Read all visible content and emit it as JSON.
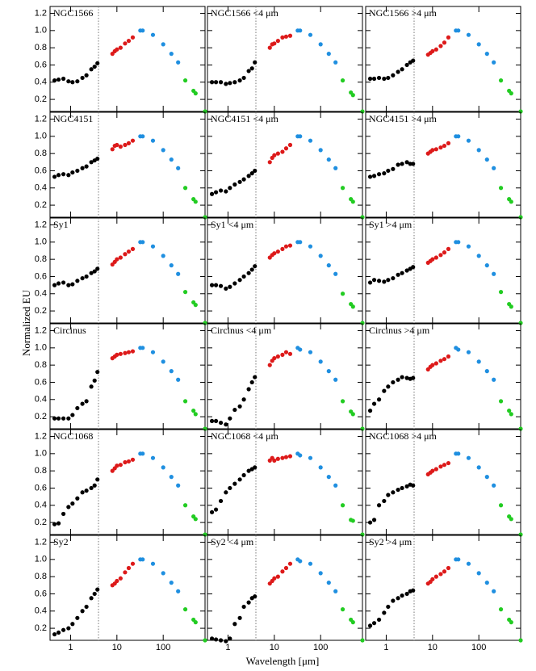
{
  "chart_data": {
    "type": "scatter",
    "xlabel": "Wavelength [μm]",
    "ylabel": "Normalized EU",
    "xscale": "log",
    "xlim": [
      0.36,
      800
    ],
    "ylim": [
      0.06,
      1.28
    ],
    "xticks": [
      1,
      10,
      100
    ],
    "yticks": [
      0.2,
      0.4,
      0.6,
      0.8,
      {
        "value": 1,
        "label": "1.0"
      },
      1.2
    ],
    "vline": 4,
    "groups": [
      {
        "color": "#000000",
        "x": [
          0.45,
          0.55,
          0.7,
          0.9,
          1.1,
          1.4,
          1.8,
          2.2,
          2.8,
          3.3,
          3.8
        ]
      },
      {
        "color": "#dd1a1a",
        "x": [
          8,
          9,
          10,
          12,
          15,
          18,
          22
        ]
      },
      {
        "color": "#1f8fe0",
        "x": [
          32,
          36,
          60,
          100,
          150,
          210
        ]
      },
      {
        "color": "#22cc22",
        "x": [
          300,
          450,
          500,
          800
        ]
      }
    ],
    "panels": [
      {
        "title": "NGC1566",
        "series": [
          {
            "values": [
              0.42,
              0.43,
              0.44,
              0.41,
              0.4,
              0.41,
              0.45,
              0.48,
              0.55,
              0.58,
              0.62
            ]
          },
          {
            "values": [
              0.73,
              0.76,
              0.78,
              0.8,
              0.85,
              0.88,
              0.92
            ]
          },
          {
            "values": [
              1.0,
              1.0,
              0.95,
              0.84,
              0.73,
              0.63
            ]
          },
          {
            "values": [
              0.42,
              0.3,
              0.27,
              0.06
            ]
          }
        ]
      },
      {
        "title": "NGC1566 <4 μm",
        "series": [
          {
            "values": [
              0.4,
              0.4,
              0.4,
              0.38,
              0.39,
              0.4,
              0.42,
              0.45,
              0.53,
              0.56,
              0.63
            ]
          },
          {
            "values": [
              0.8,
              0.84,
              0.85,
              0.88,
              0.92,
              0.93,
              0.94
            ]
          },
          {
            "values": [
              1.0,
              1.0,
              0.95,
              0.84,
              0.73,
              0.63
            ]
          },
          {
            "values": [
              0.42,
              0.28,
              0.25,
              0.06
            ]
          }
        ]
      },
      {
        "title": "NGC1566 >4 μm",
        "series": [
          {
            "values": [
              0.44,
              0.44,
              0.45,
              0.44,
              0.45,
              0.48,
              0.52,
              0.55,
              0.6,
              0.63,
              0.65
            ]
          },
          {
            "values": [
              0.72,
              0.74,
              0.76,
              0.78,
              0.82,
              0.86,
              0.92
            ]
          },
          {
            "values": [
              1.0,
              1.0,
              0.95,
              0.84,
              0.73,
              0.63
            ]
          },
          {
            "values": [
              0.42,
              0.3,
              0.27,
              0.06
            ]
          }
        ]
      },
      {
        "title": "NGC4151",
        "series": [
          {
            "values": [
              0.53,
              0.55,
              0.56,
              0.55,
              0.58,
              0.6,
              0.63,
              0.65,
              0.7,
              0.72,
              0.74
            ]
          },
          {
            "values": [
              0.85,
              0.89,
              0.9,
              0.88,
              0.9,
              0.92,
              0.95
            ]
          },
          {
            "values": [
              1.0,
              1.0,
              0.95,
              0.84,
              0.73,
              0.63
            ]
          },
          {
            "values": [
              0.4,
              0.27,
              0.24,
              0.06
            ]
          }
        ]
      },
      {
        "title": "NGC4151 <4 μm",
        "series": [
          {
            "values": [
              0.33,
              0.35,
              0.37,
              0.36,
              0.4,
              0.44,
              0.47,
              0.5,
              0.54,
              0.57,
              0.6
            ]
          },
          {
            "values": [
              0.7,
              0.75,
              0.78,
              0.8,
              0.82,
              0.86,
              0.9
            ]
          },
          {
            "values": [
              1.0,
              1.0,
              0.95,
              0.84,
              0.73,
              0.63
            ]
          },
          {
            "values": [
              0.4,
              0.27,
              0.24,
              0.06
            ]
          }
        ]
      },
      {
        "title": "NGC4151 >4 μm",
        "series": [
          {
            "values": [
              0.53,
              0.54,
              0.56,
              0.57,
              0.6,
              0.62,
              0.67,
              0.68,
              0.7,
              0.68,
              0.68
            ]
          },
          {
            "values": [
              0.8,
              0.82,
              0.84,
              0.85,
              0.87,
              0.89,
              0.92
            ]
          },
          {
            "values": [
              1.0,
              1.0,
              0.95,
              0.84,
              0.73,
              0.63
            ]
          },
          {
            "values": [
              0.4,
              0.27,
              0.24,
              0.06
            ]
          }
        ]
      },
      {
        "title": "Sy1",
        "series": [
          {
            "values": [
              0.5,
              0.52,
              0.53,
              0.5,
              0.51,
              0.55,
              0.58,
              0.6,
              0.64,
              0.66,
              0.69
            ]
          },
          {
            "values": [
              0.74,
              0.77,
              0.8,
              0.82,
              0.86,
              0.89,
              0.92
            ]
          },
          {
            "values": [
              1.0,
              1.0,
              0.95,
              0.84,
              0.73,
              0.63
            ]
          },
          {
            "values": [
              0.42,
              0.3,
              0.27,
              0.06
            ]
          }
        ]
      },
      {
        "title": "Sy1 <4 μm",
        "series": [
          {
            "values": [
              0.5,
              0.5,
              0.49,
              0.46,
              0.48,
              0.52,
              0.56,
              0.6,
              0.64,
              0.68,
              0.72
            ]
          },
          {
            "values": [
              0.82,
              0.85,
              0.87,
              0.89,
              0.92,
              0.95,
              0.96
            ]
          },
          {
            "values": [
              1.0,
              1.0,
              0.95,
              0.84,
              0.73,
              0.63
            ]
          },
          {
            "values": [
              0.4,
              0.28,
              0.25,
              0.06
            ]
          }
        ]
      },
      {
        "title": "Sy1 >4 μm",
        "series": [
          {
            "values": [
              0.53,
              0.56,
              0.55,
              0.54,
              0.56,
              0.58,
              0.62,
              0.64,
              0.67,
              0.69,
              0.71
            ]
          },
          {
            "values": [
              0.76,
              0.78,
              0.8,
              0.82,
              0.85,
              0.88,
              0.92
            ]
          },
          {
            "values": [
              1.0,
              1.0,
              0.95,
              0.84,
              0.73,
              0.63
            ]
          },
          {
            "values": [
              0.42,
              0.28,
              0.25,
              0.06
            ]
          }
        ]
      },
      {
        "title": "Circinus",
        "series": [
          {
            "values": [
              0.18,
              0.18,
              0.18,
              0.18,
              0.22,
              0.3,
              0.35,
              0.38,
              0.55,
              0.62,
              0.72
            ]
          },
          {
            "values": [
              0.88,
              0.9,
              0.92,
              0.93,
              0.94,
              0.95,
              0.96
            ]
          },
          {
            "values": [
              1.0,
              1.0,
              0.95,
              0.84,
              0.73,
              0.63
            ]
          },
          {
            "values": [
              0.38,
              0.27,
              0.23,
              0.06
            ]
          }
        ]
      },
      {
        "title": "Circinus <4 μm",
        "series": [
          {
            "values": [
              0.15,
              0.15,
              0.13,
              0.11,
              0.18,
              0.28,
              0.32,
              0.4,
              0.52,
              0.6,
              0.66
            ]
          },
          {
            "values": [
              0.8,
              0.85,
              0.88,
              0.9,
              0.92,
              0.95,
              0.93
            ]
          },
          {
            "values": [
              1.0,
              0.98,
              0.95,
              0.84,
              0.73,
              0.63
            ]
          },
          {
            "values": [
              0.38,
              0.26,
              0.23,
              0.06
            ]
          }
        ]
      },
      {
        "title": "Circinus >4 μm",
        "series": [
          {
            "values": [
              0.27,
              0.35,
              0.4,
              0.5,
              0.55,
              0.6,
              0.63,
              0.66,
              0.65,
              0.64,
              0.65
            ]
          },
          {
            "values": [
              0.75,
              0.78,
              0.8,
              0.82,
              0.85,
              0.87,
              0.9
            ]
          },
          {
            "values": [
              1.0,
              0.98,
              0.95,
              0.84,
              0.73,
              0.63
            ]
          },
          {
            "values": [
              0.38,
              0.27,
              0.23,
              0.06
            ]
          }
        ]
      },
      {
        "title": "NGC1068",
        "series": [
          {
            "values": [
              0.18,
              0.19,
              0.3,
              0.38,
              0.42,
              0.48,
              0.55,
              0.57,
              0.6,
              0.63,
              0.7
            ]
          },
          {
            "values": [
              0.8,
              0.83,
              0.86,
              0.87,
              0.9,
              0.91,
              0.93
            ]
          },
          {
            "values": [
              1.0,
              1.0,
              0.95,
              0.84,
              0.73,
              0.63
            ]
          },
          {
            "values": [
              0.4,
              0.27,
              0.24,
              0.06
            ]
          }
        ]
      },
      {
        "title": "NGC1068 <4 μm",
        "series": [
          {
            "values": [
              0.32,
              0.35,
              0.45,
              0.55,
              0.6,
              0.65,
              0.7,
              0.75,
              0.8,
              0.82,
              0.84
            ]
          },
          {
            "values": [
              0.92,
              0.95,
              0.92,
              0.94,
              0.95,
              0.96,
              0.97
            ]
          },
          {
            "values": [
              1.0,
              0.98,
              0.95,
              0.84,
              0.73,
              0.63
            ]
          },
          {
            "values": [
              0.4,
              0.23,
              0.22,
              0.06
            ]
          }
        ]
      },
      {
        "title": "NGC1068 >4 μm",
        "series": [
          {
            "values": [
              0.2,
              0.23,
              0.4,
              0.45,
              0.52,
              0.55,
              0.58,
              0.6,
              0.62,
              0.64,
              0.63
            ]
          },
          {
            "values": [
              0.76,
              0.78,
              0.8,
              0.82,
              0.85,
              0.87,
              0.89
            ]
          },
          {
            "values": [
              1.0,
              1.0,
              0.95,
              0.84,
              0.73,
              0.63
            ]
          },
          {
            "values": [
              0.4,
              0.27,
              0.24,
              0.06
            ]
          }
        ]
      },
      {
        "title": "Sy2",
        "series": [
          {
            "values": [
              0.13,
              0.15,
              0.18,
              0.2,
              0.25,
              0.32,
              0.4,
              0.45,
              0.55,
              0.6,
              0.65
            ]
          },
          {
            "values": [
              0.7,
              0.72,
              0.75,
              0.78,
              0.85,
              0.9,
              0.95
            ]
          },
          {
            "values": [
              1.0,
              1.0,
              0.95,
              0.84,
              0.73,
              0.63
            ]
          },
          {
            "values": [
              0.42,
              0.3,
              0.27,
              0.06
            ]
          }
        ]
      },
      {
        "title": "Sy2 <4 μm",
        "series": [
          {
            "values": [
              0.08,
              0.07,
              0.06,
              0.05,
              0.08,
              0.25,
              0.32,
              0.45,
              0.5,
              0.55,
              0.57
            ]
          },
          {
            "values": [
              0.72,
              0.75,
              0.78,
              0.8,
              0.86,
              0.9,
              0.95
            ]
          },
          {
            "values": [
              1.0,
              0.98,
              0.95,
              0.84,
              0.73,
              0.63
            ]
          },
          {
            "values": [
              0.42,
              0.3,
              0.27,
              0.06
            ]
          }
        ]
      },
      {
        "title": "Sy2 >4 μm",
        "series": [
          {
            "values": [
              0.23,
              0.26,
              0.3,
              0.38,
              0.45,
              0.52,
              0.55,
              0.58,
              0.6,
              0.63,
              0.64
            ]
          },
          {
            "values": [
              0.72,
              0.74,
              0.77,
              0.8,
              0.83,
              0.86,
              0.9
            ]
          },
          {
            "values": [
              1.0,
              1.0,
              0.95,
              0.84,
              0.73,
              0.63
            ]
          },
          {
            "values": [
              0.42,
              0.3,
              0.27,
              0.06
            ]
          }
        ]
      }
    ]
  }
}
